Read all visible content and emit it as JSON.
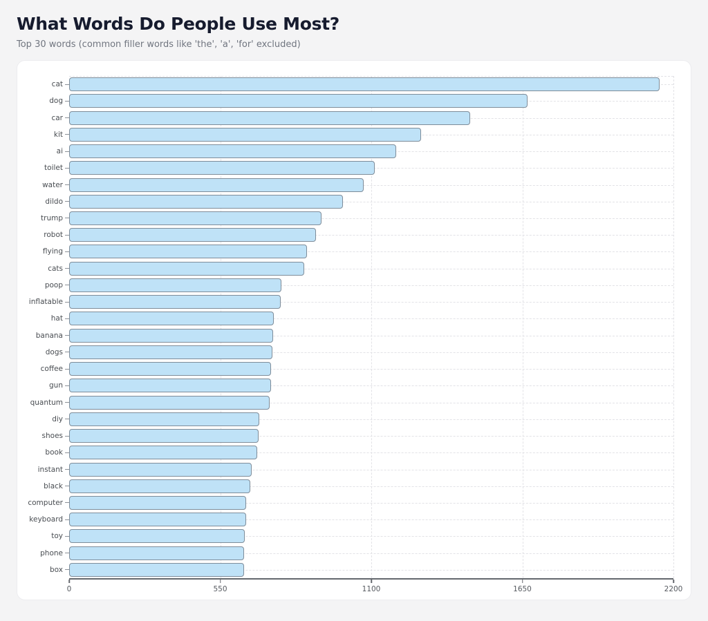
{
  "header": {
    "title": "What Words Do People Use Most?",
    "subtitle": "Top 30 words (common filler words like 'the', 'a', 'for' excluded)"
  },
  "colors": {
    "page_background": "#f4f4f5",
    "card_background": "#ffffff",
    "bar_fill": "#bfe2f7",
    "bar_border": "#7e8c99",
    "title_text": "#161b2e",
    "subtitle_text": "#70757f",
    "axis_line": "#63676d",
    "gridline": "#e2e2e6"
  },
  "chart_data": {
    "type": "bar",
    "orientation": "horizontal",
    "title": "What Words Do People Use Most?",
    "xlabel": "",
    "ylabel": "",
    "xlim": [
      0,
      2200
    ],
    "x_ticks": [
      0,
      550,
      1100,
      1650,
      2200
    ],
    "grid": "dotted",
    "legend": "none",
    "categories": [
      "cat",
      "dog",
      "car",
      "kit",
      "ai",
      "toilet",
      "water",
      "dildo",
      "trump",
      "robot",
      "flying",
      "cats",
      "poop",
      "inflatable",
      "hat",
      "banana",
      "dogs",
      "coffee",
      "gun",
      "quantum",
      "diy",
      "shoes",
      "book",
      "instant",
      "black",
      "computer",
      "keyboard",
      "toy",
      "phone",
      "box"
    ],
    "values": [
      2150,
      1670,
      1459,
      1280,
      1190,
      1113,
      1072,
      996,
      918,
      898,
      866,
      857,
      773,
      769,
      744,
      742,
      740,
      736,
      735,
      731,
      692,
      690,
      684,
      664,
      659,
      645,
      644,
      639,
      637,
      636
    ]
  }
}
